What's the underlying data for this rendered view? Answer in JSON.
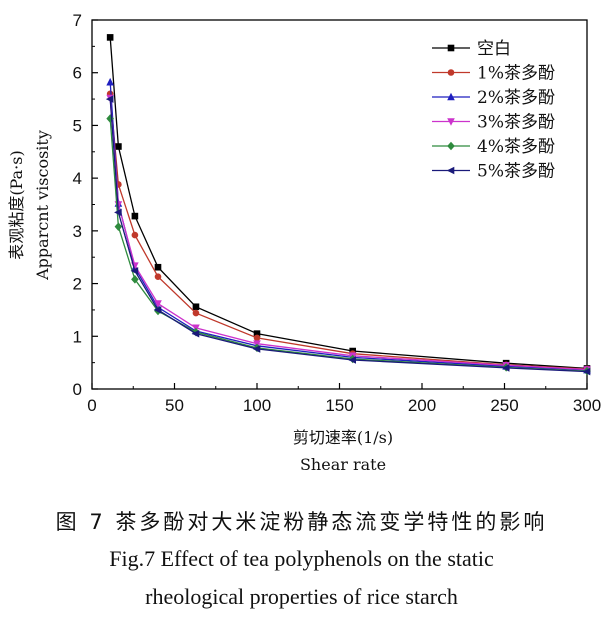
{
  "chart_data": {
    "type": "line",
    "xlabel": "剪切速率(1/s)",
    "xlabel_en": "Shear rate",
    "ylabel": "表观粘度(Pa·s)",
    "ylabel_en": "Apparcnt viscosity",
    "xlim": [
      0,
      300
    ],
    "ylim": [
      0,
      7
    ],
    "xticks": [
      0,
      50,
      100,
      150,
      200,
      250,
      300
    ],
    "yticks": [
      0,
      1,
      2,
      3,
      4,
      5,
      6,
      7
    ],
    "legend_position": "top-right",
    "x": [
      11,
      16,
      26,
      40,
      63,
      100,
      158,
      251,
      300
    ],
    "series": [
      {
        "name": "空白",
        "color": "#000000",
        "marker": "square",
        "values": [
          6.67,
          4.6,
          3.28,
          2.31,
          1.56,
          1.05,
          0.72,
          0.49,
          0.39
        ]
      },
      {
        "name": "1%茶多酚",
        "color": "#c0392b",
        "marker": "circle",
        "values": [
          5.6,
          3.88,
          2.92,
          2.13,
          1.44,
          0.97,
          0.67,
          0.46,
          0.38
        ]
      },
      {
        "name": "2%茶多酚",
        "color": "#1f1fbf",
        "marker": "triangle-up",
        "values": [
          5.82,
          3.52,
          2.3,
          1.55,
          1.1,
          0.82,
          0.6,
          0.43,
          0.36
        ]
      },
      {
        "name": "3%茶多酚",
        "color": "#cc33cc",
        "marker": "triangle-down",
        "values": [
          5.52,
          3.5,
          2.34,
          1.62,
          1.16,
          0.86,
          0.63,
          0.45,
          0.37
        ]
      },
      {
        "name": "4%茶多酚",
        "color": "#2e8b3d",
        "marker": "diamond",
        "values": [
          5.13,
          3.08,
          2.08,
          1.48,
          1.08,
          0.78,
          0.57,
          0.41,
          0.34
        ]
      },
      {
        "name": "5%茶多酚",
        "color": "#1a1a7a",
        "marker": "triangle-left",
        "values": [
          5.5,
          3.35,
          2.24,
          1.5,
          1.05,
          0.76,
          0.55,
          0.4,
          0.33
        ]
      }
    ]
  },
  "caption": {
    "zh": "图 7 茶多酚对大米淀粉静态流变学特性的影响",
    "en_line1": "Fig.7 Effect of tea polyphenols on the static",
    "en_line2": "rheological properties of rice starch"
  }
}
